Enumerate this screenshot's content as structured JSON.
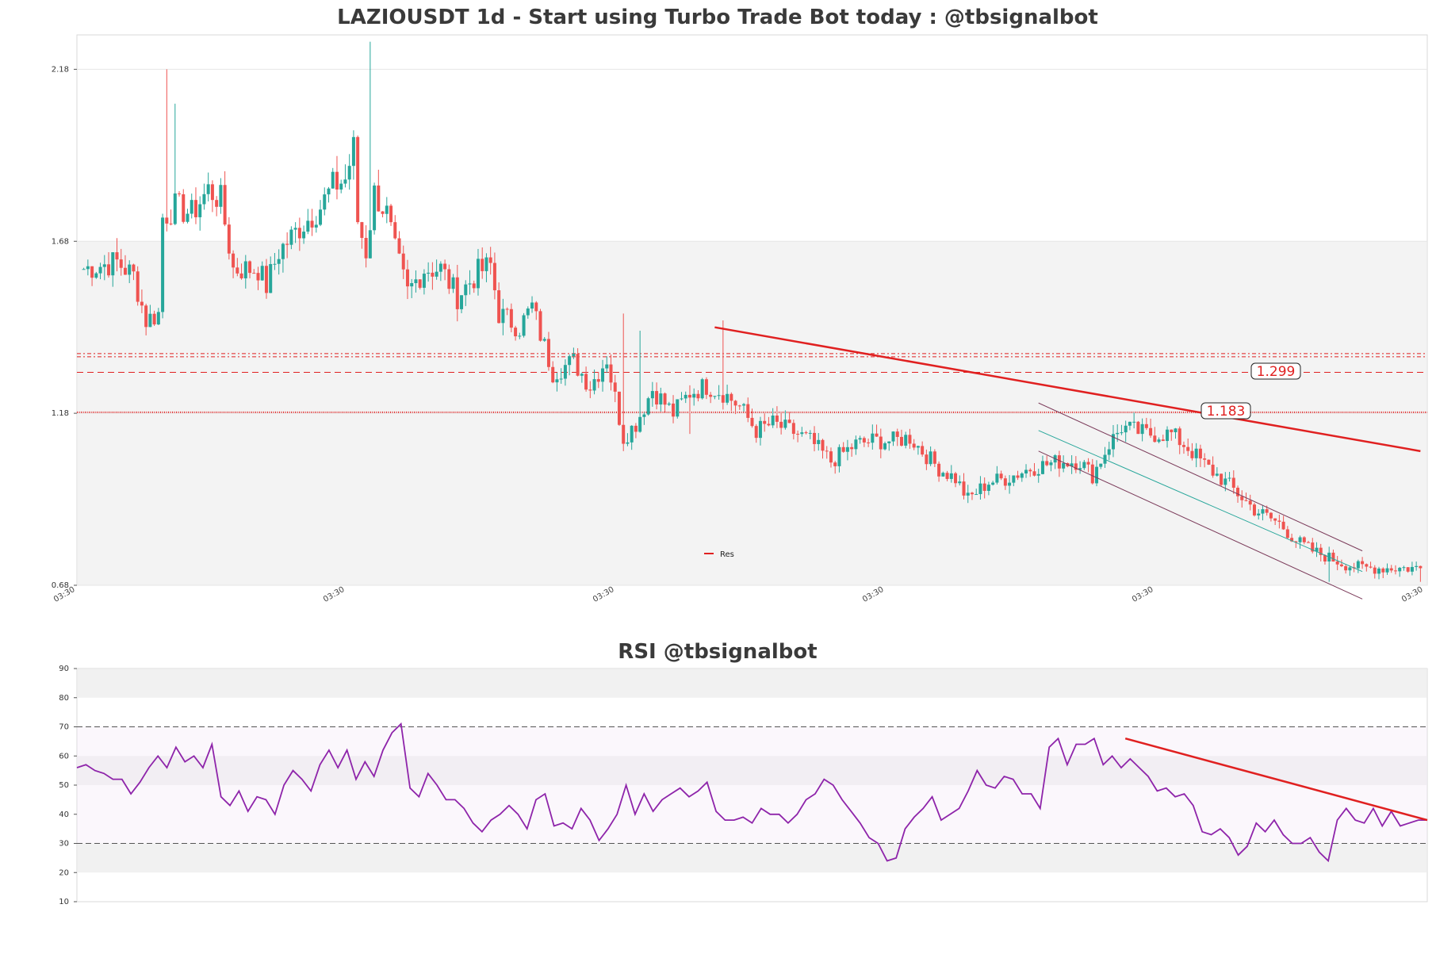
{
  "title": "LAZIOUSDT 1d - Start using Turbo Trade Bot today : @tbsignalbot",
  "rsi_title": "RSI @tbsignalbot",
  "legend": {
    "res_label": "Res"
  },
  "levels": {
    "upper_label": "1.299",
    "lower_label": "1.183"
  },
  "colors": {
    "bull": "#26a69a",
    "bear": "#ef5350",
    "res": "#e02020",
    "rsi": "#8e24aa",
    "zone": "#ebebeb"
  },
  "chart_data": [
    {
      "type": "candlestick",
      "title": "LAZIOUSDT 1d - Start using Turbo Trade Bot today : @tbsignalbot",
      "ylim": [
        0.68,
        2.28
      ],
      "yticks": [
        0.68,
        1.18,
        1.68,
        2.18
      ],
      "ytick_labels": [
        "0.68",
        "1.18",
        "1.68",
        "2.18"
      ],
      "xtick_labels": [
        "03:30",
        "03:30",
        "03:30",
        "03:30",
        "03:30",
        "03:30"
      ],
      "shaded_zone": [
        0.68,
        1.68
      ],
      "horizontal_levels": [
        1.183,
        1.299,
        1.349
      ],
      "level_labels": [
        "1.183",
        "1.299"
      ],
      "resistance_line": {
        "start": [
          152,
          1.43
        ],
        "end": [
          322,
          1.07
        ]
      },
      "channel": {
        "upper": [
          [
            230,
            1.21
          ],
          [
            308,
            0.78
          ]
        ],
        "mid": [
          [
            230,
            1.13
          ],
          [
            308,
            0.72
          ]
        ],
        "lower": [
          [
            230,
            1.07
          ],
          [
            308,
            0.64
          ]
        ]
      },
      "legend": [
        "Res"
      ],
      "anchors": [
        [
          0,
          1.6
        ],
        [
          8,
          1.62
        ],
        [
          12,
          1.58
        ],
        [
          15,
          1.45
        ],
        [
          18,
          1.47
        ],
        [
          19,
          1.75
        ],
        [
          22,
          1.78
        ],
        [
          26,
          1.76
        ],
        [
          30,
          1.83
        ],
        [
          33,
          1.8
        ],
        [
          36,
          1.6
        ],
        [
          42,
          1.6
        ],
        [
          44,
          1.55
        ],
        [
          47,
          1.65
        ],
        [
          52,
          1.72
        ],
        [
          57,
          1.78
        ],
        [
          60,
          1.84
        ],
        [
          63,
          1.86
        ],
        [
          65,
          1.95
        ],
        [
          66,
          1.74
        ],
        [
          68,
          1.65
        ],
        [
          70,
          1.82
        ],
        [
          73,
          1.76
        ],
        [
          75,
          1.65
        ],
        [
          78,
          1.53
        ],
        [
          82,
          1.6
        ],
        [
          86,
          1.6
        ],
        [
          90,
          1.52
        ],
        [
          95,
          1.59
        ],
        [
          98,
          1.61
        ],
        [
          100,
          1.47
        ],
        [
          105,
          1.43
        ],
        [
          108,
          1.49
        ],
        [
          110,
          1.41
        ],
        [
          113,
          1.3
        ],
        [
          118,
          1.33
        ],
        [
          122,
          1.26
        ],
        [
          126,
          1.34
        ],
        [
          130,
          1.11
        ],
        [
          133,
          1.15
        ],
        [
          137,
          1.25
        ],
        [
          142,
          1.18
        ],
        [
          146,
          1.24
        ],
        [
          150,
          1.26
        ],
        [
          154,
          1.24
        ],
        [
          158,
          1.2
        ],
        [
          162,
          1.13
        ],
        [
          166,
          1.15
        ],
        [
          172,
          1.12
        ],
        [
          175,
          1.1
        ],
        [
          180,
          1.04
        ],
        [
          186,
          1.09
        ],
        [
          190,
          1.1
        ],
        [
          195,
          1.1
        ],
        [
          199,
          1.11
        ],
        [
          202,
          1.07
        ],
        [
          206,
          1.02
        ],
        [
          210,
          0.99
        ],
        [
          213,
          0.93
        ],
        [
          218,
          0.98
        ],
        [
          222,
          0.99
        ],
        [
          228,
          1.02
        ],
        [
          235,
          1.04
        ],
        [
          240,
          1.04
        ],
        [
          243,
          1.0
        ],
        [
          247,
          1.09
        ],
        [
          250,
          1.14
        ],
        [
          256,
          1.12
        ],
        [
          262,
          1.12
        ],
        [
          266,
          1.08
        ],
        [
          270,
          1.03
        ],
        [
          276,
          0.97
        ],
        [
          282,
          0.9
        ],
        [
          288,
          0.86
        ],
        [
          292,
          0.81
        ],
        [
          296,
          0.78
        ],
        [
          300,
          0.76
        ],
        [
          304,
          0.74
        ],
        [
          308,
          0.73
        ]
      ]
    },
    {
      "type": "line",
      "title": "RSI @tbsignalbot",
      "ylim": [
        10,
        90
      ],
      "yticks": [
        10,
        20,
        30,
        40,
        50,
        60,
        70,
        80,
        90
      ],
      "ytick_labels": [
        "10",
        "20",
        "30",
        "40",
        "50",
        "60",
        "70",
        "80",
        "90"
      ],
      "overbought": 70,
      "oversold": 30,
      "trendline": {
        "start": [
          250,
          66
        ],
        "end": [
          322,
          38
        ]
      },
      "rsi": [
        56,
        57,
        55,
        54,
        52,
        52,
        47,
        51,
        56,
        60,
        56,
        63,
        58,
        60,
        56,
        64,
        46,
        43,
        48,
        41,
        46,
        45,
        40,
        50,
        55,
        52,
        48,
        57,
        62,
        56,
        62,
        52,
        58,
        53,
        62,
        68,
        71,
        49,
        46,
        54,
        50,
        45,
        45,
        42,
        37,
        34,
        38,
        40,
        43,
        40,
        35,
        45,
        47,
        36,
        37,
        35,
        42,
        38,
        31,
        35,
        40,
        50,
        40,
        47,
        41,
        45,
        47,
        49,
        46,
        48,
        51,
        41,
        38,
        38,
        39,
        37,
        42,
        40,
        40,
        37,
        40,
        45,
        47,
        52,
        50,
        45,
        41,
        37,
        32,
        30,
        24,
        25,
        35,
        39,
        42,
        46,
        38,
        40,
        42,
        48,
        55,
        50,
        49,
        53,
        52,
        47,
        47,
        42,
        63,
        66,
        57,
        64,
        64,
        66,
        57,
        60,
        56,
        59,
        56,
        53,
        48,
        49,
        46,
        47,
        43,
        34,
        33,
        35,
        32,
        26,
        29,
        37,
        34,
        38,
        33,
        30,
        30,
        32,
        27,
        24,
        38,
        42,
        38,
        37,
        42,
        36,
        41,
        36,
        37,
        38,
        38
      ]
    }
  ]
}
